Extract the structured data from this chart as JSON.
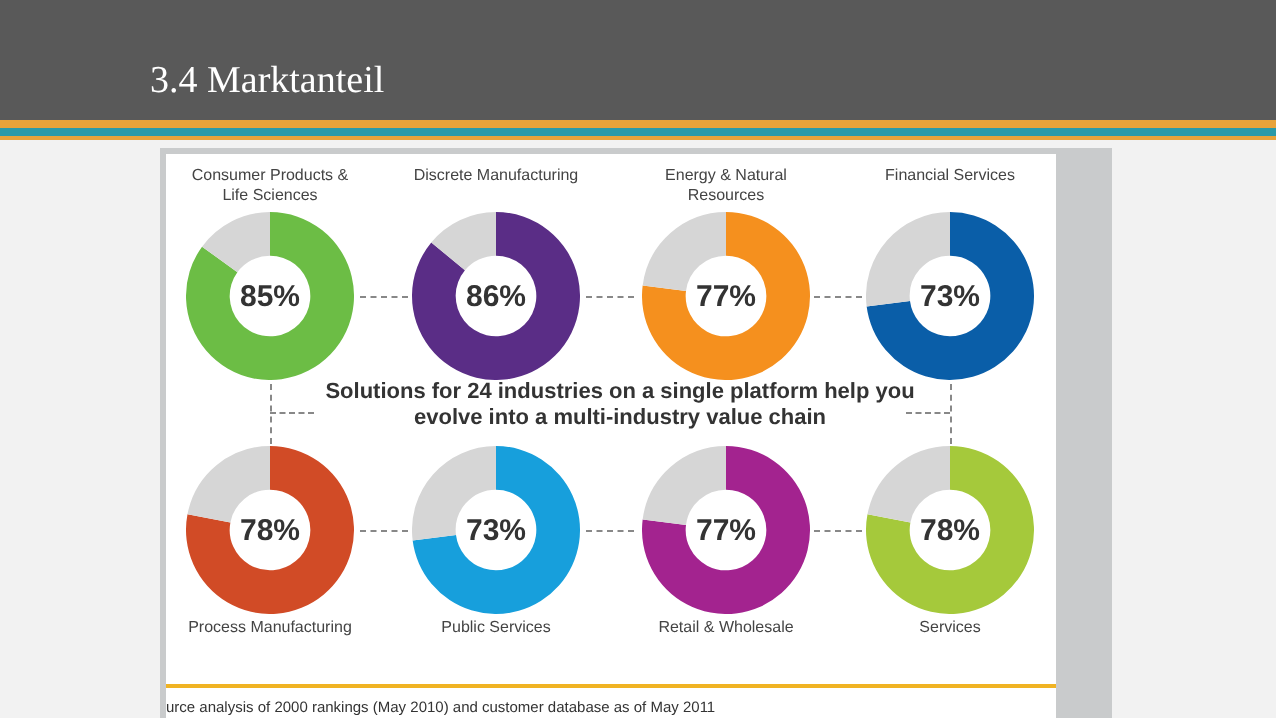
{
  "chart_data": [
    {
      "type": "other",
      "title": "3.4 Marktanteil",
      "annotations": [
        "Solutions for 24 industries on a single platform help you evolve into a multi-industry value chain",
        "urce analysis of 2000 rankings (May 2010) and customer database as of May 2011"
      ]
    },
    {
      "type": "donut",
      "title": "Consumer Products & Life Sciences",
      "categories": [
        null,
        null
      ],
      "values": [
        85,
        15
      ],
      "colors": [
        "#6cbd45",
        "#d6d6d6"
      ],
      "value_labels": [
        "85%",
        null
      ]
    },
    {
      "type": "donut",
      "title": "Discrete Manufacturing",
      "categories": [
        null,
        null
      ],
      "values": [
        86,
        14
      ],
      "colors": [
        "#5a2d86",
        "#d6d6d6"
      ],
      "value_labels": [
        "86%",
        null
      ]
    },
    {
      "type": "donut",
      "title": "Energy & Natural Resources",
      "categories": [
        null,
        null
      ],
      "values": [
        77,
        23
      ],
      "colors": [
        "#f5901e",
        "#d6d6d6"
      ],
      "value_labels": [
        "77%",
        null
      ]
    },
    {
      "type": "donut",
      "title": "Financial Services",
      "categories": [
        null,
        null
      ],
      "values": [
        73,
        27
      ],
      "colors": [
        "#0a5ea8",
        "#d6d6d6"
      ],
      "value_labels": [
        "73%",
        null
      ]
    },
    {
      "type": "donut",
      "title": "Process Manufacturing",
      "categories": [
        null,
        null
      ],
      "values": [
        78,
        22
      ],
      "colors": [
        "#d14b26",
        "#d6d6d6"
      ],
      "value_labels": [
        "78%",
        null
      ]
    },
    {
      "type": "donut",
      "title": "Public Services",
      "categories": [
        null,
        null
      ],
      "values": [
        73,
        27
      ],
      "colors": [
        "#179fdc",
        "#d6d6d6"
      ],
      "value_labels": [
        "73%",
        null
      ]
    },
    {
      "type": "donut",
      "title": "Retail & Wholesale",
      "categories": [
        null,
        null
      ],
      "values": [
        77,
        23
      ],
      "colors": [
        "#a3238f",
        "#d6d6d6"
      ],
      "value_labels": [
        "77%",
        null
      ]
    },
    {
      "type": "donut",
      "title": "Services",
      "categories": [
        null,
        null
      ],
      "values": [
        78,
        22
      ],
      "colors": [
        "#a5c93b",
        "#d6d6d6"
      ],
      "value_labels": [
        "78%",
        null
      ]
    }
  ]
}
